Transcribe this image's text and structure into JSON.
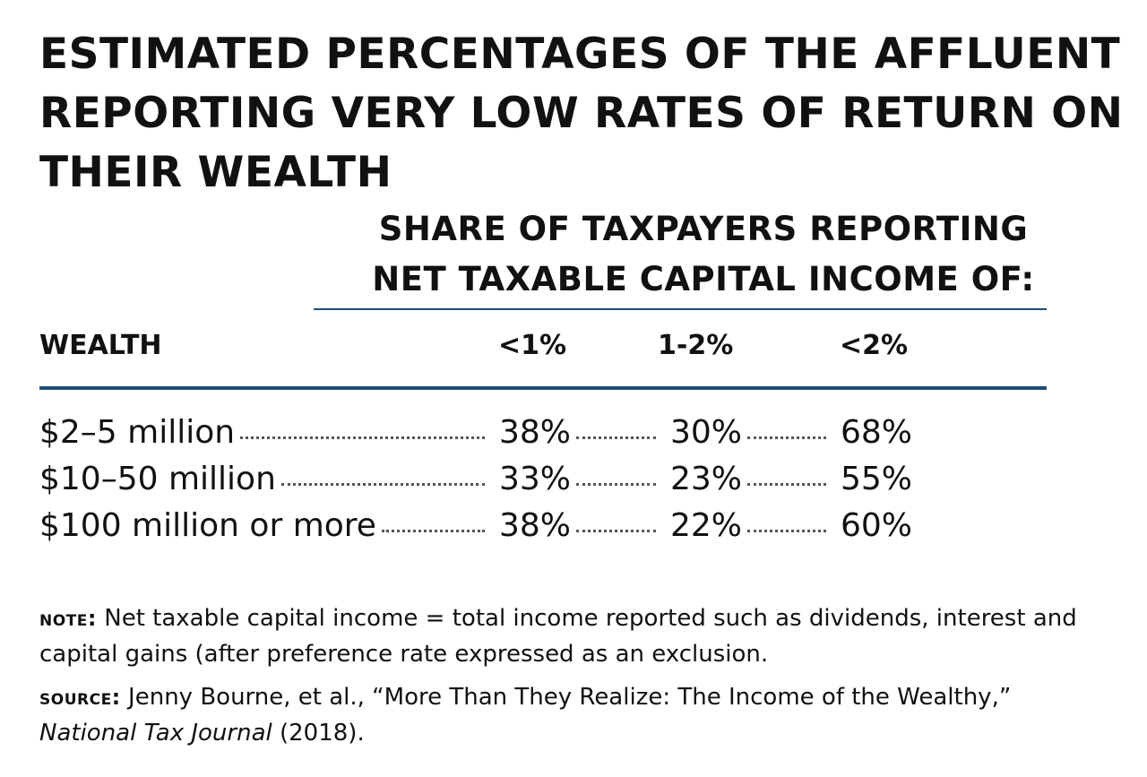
{
  "title": "ESTIMATED PERCENTAGES OF THE AFFLUENT REPORTING VERY LOW RATES OF RETURN ON THEIR WEALTH",
  "table": {
    "group_header": "SHARE OF TAXPAYERS REPORTING NET TAXABLE CAPITAL INCOME OF:",
    "columns": [
      "WEALTH",
      "<1%",
      "1-2%",
      "<2%"
    ],
    "rows": [
      [
        "$2–5 million",
        "38%",
        "30%",
        "68%"
      ],
      [
        "$10–50 million",
        "33%",
        "23%",
        "55%"
      ],
      [
        "$100 million or more",
        "38%",
        "22%",
        "60%"
      ]
    ]
  },
  "note": {
    "label": "NOTE:",
    "text": "Net taxable capital income = total income reported such as dividends, interest and capital gains (after preference rate expressed as an exclusion."
  },
  "source": {
    "label": "SOURCE:",
    "text": "Jenny Bourne, et al., “More Than They Realize: The Income of the Wealthy,”",
    "journal": "National Tax Journal",
    "year": "(2018)."
  }
}
